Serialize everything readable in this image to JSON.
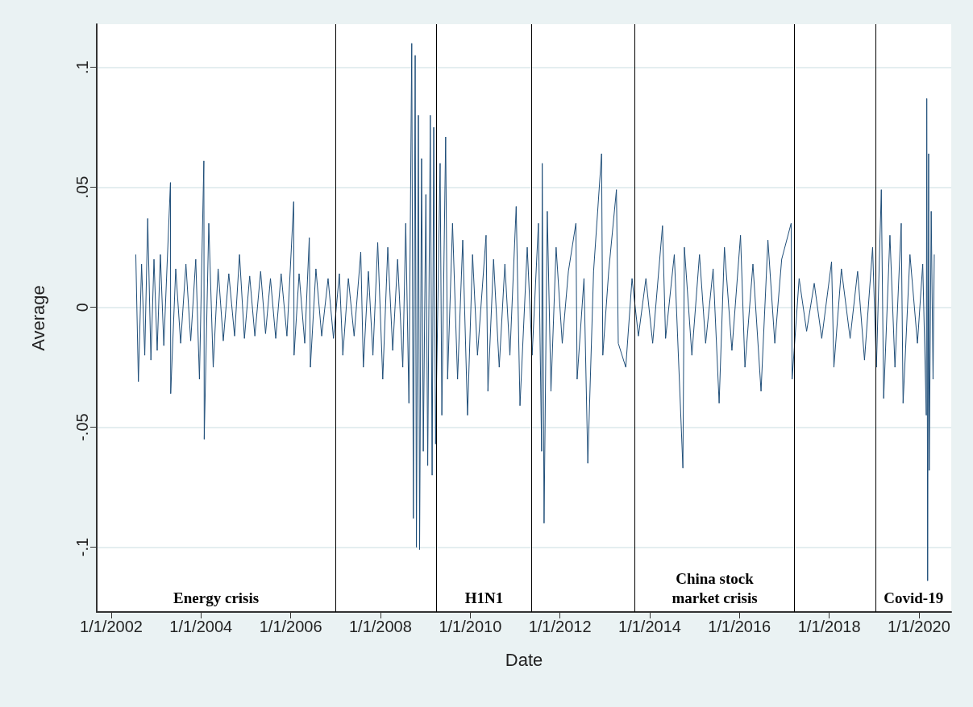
{
  "chart_data": {
    "type": "line",
    "xlabel": "Date",
    "ylabel": "Average",
    "xlim": [
      "2001-09-05",
      "2020-09-20"
    ],
    "ylim": [
      -0.127,
      0.118
    ],
    "xticks": [
      {
        "value": "2002-01-01",
        "label": "1/1/2002"
      },
      {
        "value": "2004-01-01",
        "label": "1/1/2004"
      },
      {
        "value": "2006-01-01",
        "label": "1/1/2006"
      },
      {
        "value": "2008-01-01",
        "label": "1/1/2008"
      },
      {
        "value": "2010-01-01",
        "label": "1/1/2010"
      },
      {
        "value": "2012-01-01",
        "label": "1/1/2012"
      },
      {
        "value": "2014-01-01",
        "label": "1/1/2014"
      },
      {
        "value": "2016-01-01",
        "label": "1/1/2016"
      },
      {
        "value": "2018-01-01",
        "label": "1/1/2018"
      },
      {
        "value": "2020-01-01",
        "label": "1/1/2020"
      }
    ],
    "yticks": [
      {
        "value": -0.1,
        "label": "-.1"
      },
      {
        "value": -0.05,
        "label": "-.05"
      },
      {
        "value": 0,
        "label": "0"
      },
      {
        "value": 0.05,
        "label": ".05"
      },
      {
        "value": 0.1,
        "label": ".1"
      }
    ],
    "grid": "y",
    "marker": "none",
    "line_style": "solid",
    "ref_lines": [
      {
        "axis": "x",
        "value": "2007-01-01",
        "color": "#000000"
      },
      {
        "axis": "x",
        "value": "2009-04-01",
        "color": "#000000"
      },
      {
        "axis": "x",
        "value": "2011-05-15",
        "color": "#000000"
      },
      {
        "axis": "x",
        "value": "2013-09-01",
        "color": "#000000"
      },
      {
        "axis": "x",
        "value": "2017-03-25",
        "color": "#000000"
      },
      {
        "axis": "x",
        "value": "2019-01-15",
        "color": "#000000"
      }
    ],
    "annotations": [
      "Energy crisis",
      "H1N1",
      "China stock\nmarket crisis",
      "Covid-19"
    ],
    "series": [
      {
        "color": "#1f4e79",
        "x": [
          "2002-07-20",
          "2002-08-10",
          "2002-09-05",
          "2002-10-01",
          "2002-10-25",
          "2002-11-20",
          "2002-12-15",
          "2003-01-10",
          "2003-02-05",
          "2003-03-05",
          "2003-04-28",
          "2003-04-30",
          "2003-06-10",
          "2003-07-20",
          "2003-09-01",
          "2003-10-10",
          "2003-11-20",
          "2003-12-20",
          "2004-01-25",
          "2004-01-28",
          "2004-03-05",
          "2004-04-10",
          "2004-05-20",
          "2004-07-01",
          "2004-08-15",
          "2004-10-01",
          "2004-11-10",
          "2004-12-20",
          "2005-02-01",
          "2005-03-15",
          "2005-05-01",
          "2005-06-10",
          "2005-07-20",
          "2005-09-01",
          "2005-10-15",
          "2005-12-01",
          "2006-01-25",
          "2006-01-28",
          "2006-03-10",
          "2006-04-25",
          "2006-06-01",
          "2006-06-10",
          "2006-07-25",
          "2006-09-10",
          "2006-11-01",
          "2006-12-15",
          "2007-02-01",
          "2007-03-01",
          "2007-04-15",
          "2007-06-01",
          "2007-07-25",
          "2007-08-15",
          "2007-09-25",
          "2007-11-01",
          "2007-12-10",
          "2008-01-20",
          "2008-03-01",
          "2008-04-10",
          "2008-05-20",
          "2008-07-01",
          "2008-07-25",
          "2008-08-20",
          "2008-09-12",
          "2008-09-25",
          "2008-10-10",
          "2008-10-20",
          "2008-11-05",
          "2008-11-15",
          "2008-12-01",
          "2008-12-15",
          "2009-01-05",
          "2009-01-20",
          "2009-02-10",
          "2009-02-25",
          "2009-03-10",
          "2009-03-25",
          "2009-05-01",
          "2009-05-15",
          "2009-06-15",
          "2009-07-01",
          "2009-08-10",
          "2009-09-20",
          "2009-11-01",
          "2009-12-10",
          "2010-01-20",
          "2010-03-01",
          "2010-05-10",
          "2010-05-25",
          "2010-07-10",
          "2010-08-25",
          "2010-10-10",
          "2010-11-20",
          "2011-01-10",
          "2011-02-10",
          "2011-04-10",
          "2011-05-20",
          "2011-07-10",
          "2011-08-05",
          "2011-08-10",
          "2011-08-25",
          "2011-09-20",
          "2011-10-20",
          "2011-12-01",
          "2012-01-20",
          "2012-03-10",
          "2012-05-10",
          "2012-05-20",
          "2012-07-15",
          "2012-08-15",
          "2012-10-01",
          "2012-12-05",
          "2012-12-15",
          "2013-02-01",
          "2013-04-05",
          "2013-04-20",
          "2013-06-20",
          "2013-08-10",
          "2013-10-01",
          "2013-12-01",
          "2014-01-25",
          "2014-04-15",
          "2014-05-10",
          "2014-07-20",
          "2014-09-28",
          "2014-10-10",
          "2014-12-10",
          "2015-02-10",
          "2015-04-01",
          "2015-06-01",
          "2015-07-20",
          "2015-09-01",
          "2015-11-01",
          "2016-01-10",
          "2016-02-15",
          "2016-04-20",
          "2016-06-25",
          "2016-08-20",
          "2016-10-15",
          "2016-12-10",
          "2017-02-25",
          "2017-03-05",
          "2017-05-01",
          "2017-07-01",
          "2017-09-01",
          "2017-11-01",
          "2018-01-20",
          "2018-02-08",
          "2018-04-10",
          "2018-06-20",
          "2018-08-20",
          "2018-10-15",
          "2018-12-20",
          "2019-01-20",
          "2019-03-01",
          "2019-03-20",
          "2019-05-10",
          "2019-06-20",
          "2019-08-10",
          "2019-08-25",
          "2019-10-20",
          "2019-12-20",
          "2020-02-01",
          "2020-03-01",
          "2020-03-05",
          "2020-03-12",
          "2020-03-20",
          "2020-03-25",
          "2020-04-10",
          "2020-04-25",
          "2020-05-05"
        ],
        "values": [
          0.022,
          -0.031,
          0.018,
          -0.02,
          0.037,
          -0.022,
          0.02,
          -0.018,
          0.022,
          -0.016,
          0.052,
          -0.036,
          0.016,
          -0.015,
          0.018,
          -0.014,
          0.02,
          -0.03,
          0.061,
          -0.055,
          0.035,
          -0.025,
          0.016,
          -0.014,
          0.014,
          -0.012,
          0.022,
          -0.013,
          0.013,
          -0.012,
          0.015,
          -0.011,
          0.012,
          -0.013,
          0.014,
          -0.012,
          0.044,
          -0.02,
          0.014,
          -0.015,
          0.029,
          -0.025,
          0.016,
          -0.012,
          0.012,
          -0.013,
          0.014,
          -0.02,
          0.012,
          -0.012,
          0.023,
          -0.025,
          0.015,
          -0.02,
          0.027,
          -0.03,
          0.025,
          -0.018,
          0.02,
          -0.025,
          0.035,
          -0.04,
          0.11,
          -0.088,
          0.105,
          -0.1,
          0.08,
          -0.101,
          0.062,
          -0.06,
          0.047,
          -0.066,
          0.08,
          -0.07,
          0.075,
          -0.057,
          0.06,
          -0.045,
          0.071,
          -0.03,
          0.035,
          -0.03,
          0.028,
          -0.045,
          0.022,
          -0.02,
          0.03,
          -0.035,
          0.02,
          -0.025,
          0.018,
          -0.02,
          0.042,
          -0.041,
          0.025,
          -0.02,
          0.035,
          -0.06,
          0.06,
          -0.09,
          0.04,
          -0.035,
          0.025,
          -0.015,
          0.015,
          0.035,
          -0.03,
          0.012,
          -0.065,
          0.015,
          0.064,
          -0.02,
          0.015,
          0.049,
          -0.015,
          -0.025,
          0.012,
          -0.012,
          0.012,
          -0.015,
          0.034,
          -0.013,
          0.022,
          -0.067,
          0.025,
          -0.02,
          0.022,
          -0.015,
          0.016,
          -0.04,
          0.025,
          -0.018,
          0.03,
          -0.025,
          0.018,
          -0.035,
          0.028,
          -0.015,
          0.02,
          0.035,
          -0.03,
          0.012,
          -0.01,
          0.01,
          -0.013,
          0.019,
          -0.025,
          0.016,
          -0.013,
          0.015,
          -0.022,
          0.025,
          -0.025,
          0.049,
          -0.038,
          0.03,
          -0.025,
          0.035,
          -0.04,
          0.022,
          -0.015,
          0.018,
          -0.045,
          0.087,
          -0.114,
          0.064,
          -0.068,
          0.04,
          -0.03,
          0.022
        ]
      }
    ]
  }
}
